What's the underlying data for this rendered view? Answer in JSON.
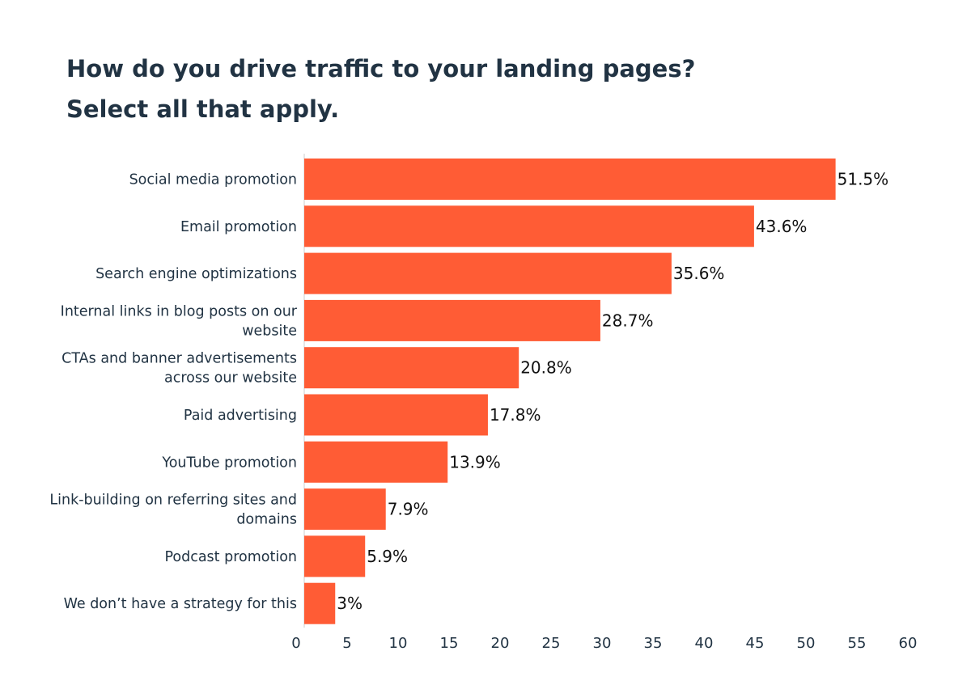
{
  "chart_data": {
    "type": "bar",
    "orientation": "horizontal",
    "title": [
      "How do you drive traffic to your landing pages?",
      "Select all that apply."
    ],
    "categories": [
      [
        "Social media promotion"
      ],
      [
        "Email promotion"
      ],
      [
        "Search engine optimizations"
      ],
      [
        "Internal links in blog posts on our",
        "website"
      ],
      [
        "CTAs and banner advertisements",
        "across our website"
      ],
      [
        "Paid advertising"
      ],
      [
        "YouTube promotion"
      ],
      [
        "Link-building on referring sites and",
        "domains"
      ],
      [
        "Podcast promotion"
      ],
      [
        "We don’t have a strategy for this"
      ]
    ],
    "values": [
      51.5,
      43.6,
      35.6,
      28.7,
      20.8,
      17.8,
      13.9,
      7.9,
      5.9,
      3
    ],
    "data_labels": [
      "51.5%",
      "43.6%",
      "35.6%",
      "28.7%",
      "20.8%",
      "17.8%",
      "13.9%",
      "7.9%",
      "5.9%",
      "3%"
    ],
    "xlim": [
      0,
      60
    ],
    "xticks": [
      "0",
      "5",
      "10",
      "15",
      "20",
      "25",
      "30",
      "35",
      "40",
      "45",
      "50",
      "55",
      "60"
    ],
    "xlabel": "",
    "ylabel": "",
    "grid": false,
    "bar_color": "#FF5C35",
    "title_color": "#213343"
  }
}
